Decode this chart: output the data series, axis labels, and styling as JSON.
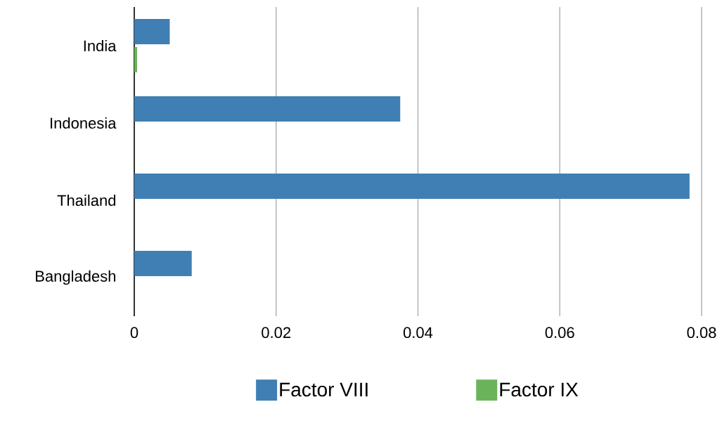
{
  "chart_data": {
    "type": "bar",
    "orientation": "horizontal",
    "categories": [
      "India",
      "Indonesia",
      "Thailand",
      "Bangladesh"
    ],
    "series": [
      {
        "name": "Factor VIII",
        "color": "#3f7fb3",
        "values": [
          0.005,
          0.0375,
          0.0783,
          0.0081
        ]
      },
      {
        "name": "Factor IX",
        "color": "#6ab35b",
        "values": [
          0.0004,
          0,
          0,
          0
        ]
      }
    ],
    "xlim": [
      0,
      0.08
    ],
    "xticks": [
      0,
      0.02,
      0.04,
      0.06,
      0.08
    ],
    "grid": "x",
    "legend": "bottom"
  }
}
